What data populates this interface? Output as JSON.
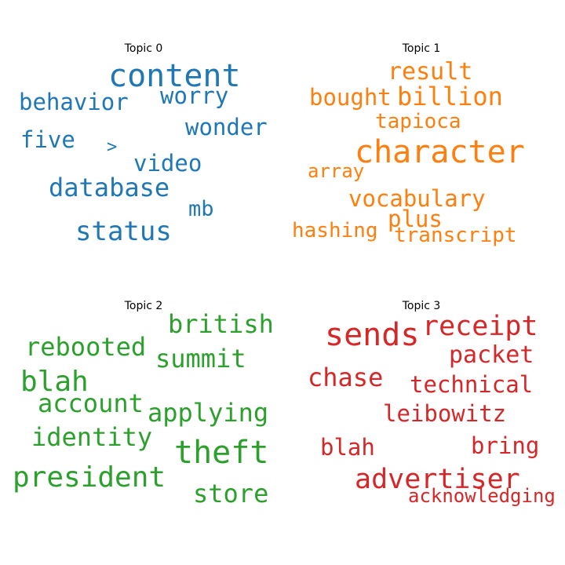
{
  "chart_data": [
    {
      "type": "wordcloud",
      "title": "Topic 0",
      "color": "#1f77b4",
      "words": [
        {
          "text": "content",
          "weight": 1.0
        },
        {
          "text": "status",
          "weight": 0.85
        },
        {
          "text": "database",
          "weight": 0.8
        },
        {
          "text": "behavior",
          "weight": 0.72
        },
        {
          "text": "wonder",
          "weight": 0.72
        },
        {
          "text": "worry",
          "weight": 0.72
        },
        {
          "text": "five",
          "weight": 0.72
        },
        {
          "text": "video",
          "weight": 0.72
        },
        {
          "text": "mb",
          "weight": 0.68
        },
        {
          "text": ">",
          "weight": 0.55
        }
      ]
    },
    {
      "type": "wordcloud",
      "title": "Topic 1",
      "color": "#ff7f0e",
      "words": [
        {
          "text": "character",
          "weight": 1.0
        },
        {
          "text": "billion",
          "weight": 0.8
        },
        {
          "text": "result",
          "weight": 0.75
        },
        {
          "text": "bought",
          "weight": 0.72
        },
        {
          "text": "vocabulary",
          "weight": 0.72
        },
        {
          "text": "plus",
          "weight": 0.72
        },
        {
          "text": "tapioca",
          "weight": 0.65
        },
        {
          "text": "hashing",
          "weight": 0.65
        },
        {
          "text": "transcript",
          "weight": 0.65
        },
        {
          "text": "array",
          "weight": 0.62
        }
      ]
    },
    {
      "type": "wordcloud",
      "title": "Topic 2",
      "color": "#2ca02c",
      "words": [
        {
          "text": "theft",
          "weight": 1.0
        },
        {
          "text": "president",
          "weight": 0.92
        },
        {
          "text": "blah",
          "weight": 0.92
        },
        {
          "text": "british",
          "weight": 0.8
        },
        {
          "text": "applying",
          "weight": 0.8
        },
        {
          "text": "rebooted",
          "weight": 0.8
        },
        {
          "text": "summit",
          "weight": 0.8
        },
        {
          "text": "account",
          "weight": 0.8
        },
        {
          "text": "identity",
          "weight": 0.8
        },
        {
          "text": "store",
          "weight": 0.8
        }
      ]
    },
    {
      "type": "wordcloud",
      "title": "Topic 3",
      "color": "#d62728",
      "words": [
        {
          "text": "sends",
          "weight": 1.0
        },
        {
          "text": "receipt",
          "weight": 0.88
        },
        {
          "text": "advertiser",
          "weight": 0.88
        },
        {
          "text": "chase",
          "weight": 0.8
        },
        {
          "text": "packet",
          "weight": 0.76
        },
        {
          "text": "technical",
          "weight": 0.72
        },
        {
          "text": "leibowitz",
          "weight": 0.72
        },
        {
          "text": "bring",
          "weight": 0.72
        },
        {
          "text": "blah",
          "weight": 0.72
        },
        {
          "text": "acknowledging",
          "weight": 0.6
        }
      ]
    }
  ]
}
